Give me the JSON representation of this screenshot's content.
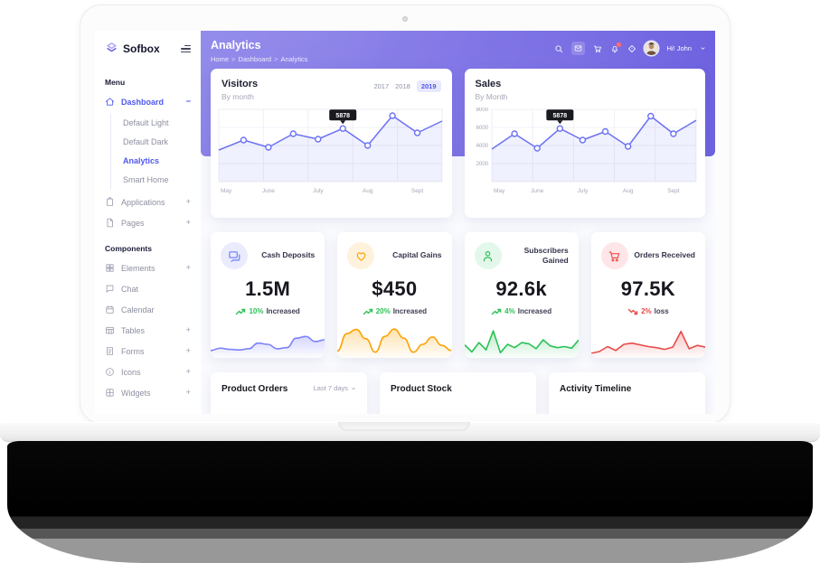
{
  "sidebar": {
    "brand": "Sofbox",
    "sections": [
      {
        "label": "Menu",
        "items": [
          {
            "label": "Dashboard",
            "icon": "home",
            "active": true,
            "toggle": "-",
            "children": [
              {
                "label": "Default Light"
              },
              {
                "label": "Default Dark"
              },
              {
                "label": "Analytics",
                "active": true
              },
              {
                "label": "Smart Home"
              }
            ]
          },
          {
            "label": "Applications",
            "icon": "clipboard",
            "toggle": "+"
          },
          {
            "label": "Pages",
            "icon": "pages",
            "toggle": "+"
          }
        ]
      },
      {
        "label": "Components",
        "items": [
          {
            "label": "Elements",
            "icon": "elements",
            "toggle": "+"
          },
          {
            "label": "Chat",
            "icon": "chat"
          },
          {
            "label": "Calendar",
            "icon": "calendar"
          },
          {
            "label": "Tables",
            "icon": "tables",
            "toggle": "+"
          },
          {
            "label": "Forms",
            "icon": "forms",
            "toggle": "+"
          },
          {
            "label": "Icons",
            "icon": "icons",
            "toggle": "+"
          },
          {
            "label": "Widgets",
            "icon": "widgets",
            "toggle": "+"
          }
        ]
      }
    ]
  },
  "header": {
    "title": "Analytics",
    "breadcrumb": [
      "Home",
      "Dashboard",
      "Analytics"
    ],
    "icons": [
      "search",
      "mail",
      "cart",
      "bell",
      "locate"
    ],
    "user_greeting": "Hi! John"
  },
  "chart_data": [
    {
      "type": "line",
      "title": "Visitors",
      "subtitle": "By month",
      "years": [
        "2017",
        "2018",
        "2019"
      ],
      "active_year": "2019",
      "x_labels": [
        "May",
        "June",
        "July",
        "Aug",
        "Sept"
      ],
      "values": [
        3500,
        4600,
        3800,
        5300,
        4700,
        5878,
        4000,
        7300,
        5400,
        6700
      ],
      "ylim": [
        0,
        8000
      ],
      "y_ticks": [],
      "tooltip": {
        "index": 5,
        "label": "5878"
      },
      "line_color": "#6c72f3",
      "grid": true,
      "legend": "none"
    },
    {
      "type": "line",
      "title": "Sales",
      "subtitle": "By Month",
      "x_labels": [
        "May",
        "June",
        "July",
        "Aug",
        "Sept"
      ],
      "values": [
        3600,
        5300,
        3700,
        5878,
        4600,
        5550,
        3900,
        7250,
        5300,
        6780
      ],
      "ylim": [
        0,
        8000
      ],
      "y_ticks": [
        2000,
        4000,
        6000,
        8000
      ],
      "tooltip": {
        "index": 3,
        "label": "5878"
      },
      "line_color": "#6c72f3",
      "grid": true,
      "legend": "none"
    }
  ],
  "stats": [
    {
      "label": "Cash Deposits",
      "value": "1.5M",
      "delta": "10%",
      "delta_suffix": "Increased",
      "trend": "up",
      "icon": "chat-bubble",
      "icon_color": "#6e7af8",
      "icon_bg": "#eaecfd",
      "spark": {
        "type": "area",
        "smooth": true,
        "color": "#7d82f8",
        "values": [
          20,
          28,
          24,
          22,
          26,
          46,
          42,
          26,
          30,
          64,
          70,
          52,
          58
        ]
      }
    },
    {
      "label": "Capital Gains",
      "value": "$450",
      "delta": "20%",
      "delta_suffix": "Increased",
      "trend": "up",
      "icon": "heart",
      "icon_color": "#fda202",
      "icon_bg": "#fef2dd",
      "spark": {
        "type": "area",
        "smooth": true,
        "color": "#fda202",
        "values": [
          18,
          80,
          95,
          62,
          14,
          70,
          96,
          64,
          14,
          42,
          68,
          38,
          20
        ]
      }
    },
    {
      "label": "Subscribers Gained",
      "value": "92.6k",
      "delta": "4%",
      "delta_suffix": "Increased",
      "trend": "up",
      "icon": "user",
      "icon_color": "#2bc155",
      "icon_bg": "#e3f8ea",
      "spark": {
        "type": "area",
        "smooth": false,
        "color": "#2bc155",
        "values": [
          40,
          15,
          48,
          22,
          90,
          12,
          42,
          30,
          48,
          44,
          26,
          58,
          36,
          30,
          34,
          28,
          58
        ]
      }
    },
    {
      "label": "Orders Received",
      "value": "97.5K",
      "delta": "2%",
      "delta_suffix": "loss",
      "trend": "down",
      "icon": "cart",
      "icon_color": "#f05050",
      "icon_bg": "#fde5e8",
      "spark": {
        "type": "area",
        "smooth": false,
        "color": "#e84a4a",
        "values": [
          10,
          16,
          34,
          20,
          42,
          46,
          40,
          34,
          30,
          24,
          32,
          88,
          26,
          38,
          32
        ]
      }
    }
  ],
  "bottom_cards": [
    {
      "title": "Product Orders",
      "filter": "Last 7 days"
    },
    {
      "title": "Product Stock"
    },
    {
      "title": "Activity Timeline"
    }
  ],
  "colors": {
    "primary": "#4f58ee",
    "header_gradient_start": "#9189ea",
    "header_gradient_end": "#6a5edf",
    "green": "#2bc155",
    "red": "#e84a4a",
    "orange": "#fda202",
    "tooltip_bg": "#191920"
  }
}
